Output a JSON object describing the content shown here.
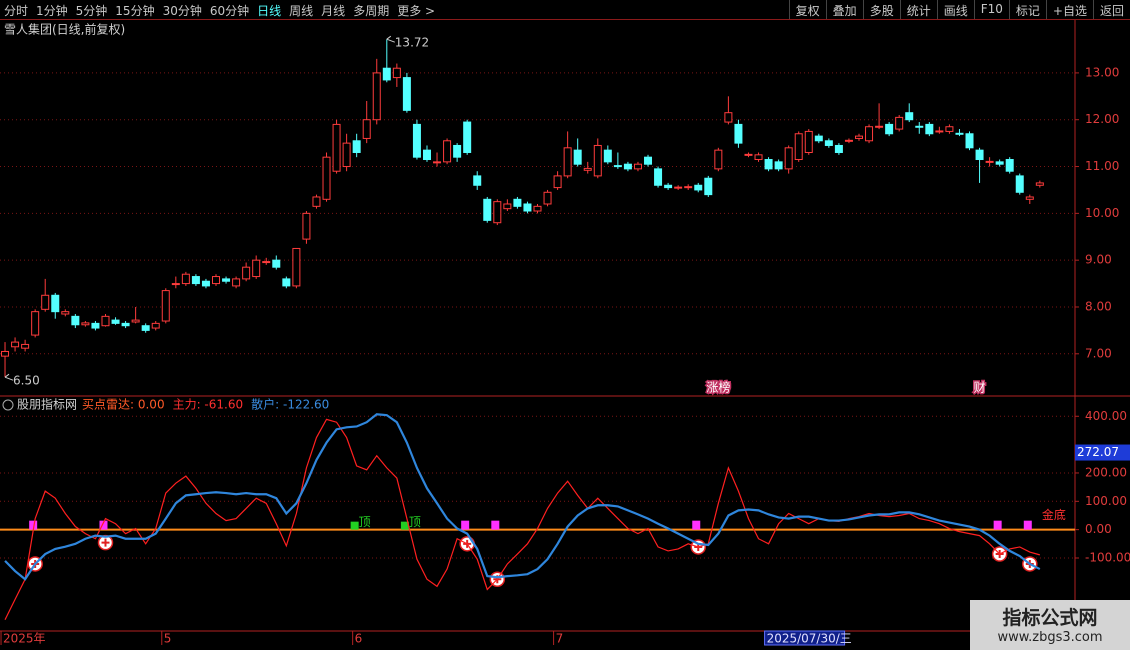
{
  "toolbar": {
    "left": [
      "分时",
      "1分钟",
      "5分钟",
      "15分钟",
      "30分钟",
      "60分钟",
      "日线",
      "周线",
      "月线",
      "多周期",
      "更多 >"
    ],
    "active": "日线",
    "right": [
      "复权",
      "叠加",
      "多股",
      "统计",
      "画线",
      "F10",
      "标记",
      "+自选",
      "返回"
    ]
  },
  "watermark": {
    "title": "指标公式网",
    "url": "www.zbgs3.com"
  },
  "chart_data": [
    {
      "type": "candlestick",
      "title": "雪人集团(日线,前复权)",
      "up_color": "#ff3c3c",
      "down_color": "#54ffff",
      "ylim": [
        6.12,
        14.13
      ],
      "yticks": [
        {
          "value": 7,
          "label": "7.00"
        },
        {
          "value": 8,
          "label": "8.00"
        },
        {
          "value": 9,
          "label": "9.00"
        },
        {
          "value": 10,
          "label": "10.00"
        },
        {
          "value": 11,
          "label": "11.00"
        },
        {
          "value": 12,
          "label": "12.00"
        },
        {
          "value": 13,
          "label": "13.00"
        }
      ],
      "grid": true,
      "categories": [
        "2025年",
        null,
        null,
        null,
        null,
        null,
        null,
        null,
        null,
        null,
        null,
        null,
        null,
        null,
        null,
        null,
        "5",
        null,
        null,
        null,
        null,
        null,
        null,
        null,
        null,
        null,
        null,
        null,
        null,
        null,
        null,
        null,
        null,
        null,
        null,
        "6",
        null,
        null,
        null,
        null,
        null,
        null,
        null,
        null,
        null,
        null,
        null,
        null,
        null,
        null,
        null,
        null,
        null,
        null,
        null,
        "7",
        null,
        null,
        null,
        null,
        null,
        null,
        null,
        null,
        null,
        null,
        null,
        null,
        null,
        null,
        null,
        null,
        null,
        null,
        null,
        null,
        null,
        null,
        null,
        null,
        null,
        null,
        null,
        null,
        null,
        null,
        null,
        null,
        null,
        null,
        null,
        null,
        null,
        null,
        null,
        null,
        null,
        null,
        null,
        null,
        null,
        null,
        null,
        null
      ],
      "open": [
        6.95,
        7.15,
        7.12,
        7.4,
        7.95,
        8.25,
        7.85,
        7.8,
        7.62,
        7.65,
        7.6,
        7.72,
        7.65,
        7.68,
        7.6,
        7.55,
        7.7,
        8.48,
        8.5,
        8.65,
        8.55,
        8.5,
        8.6,
        8.45,
        8.6,
        8.65,
        8.95,
        9.0,
        8.6,
        8.45,
        9.45,
        10.15,
        10.3,
        10.9,
        11.0,
        11.55,
        11.6,
        12.0,
        13.1,
        12.9,
        12.9,
        11.9,
        11.35,
        11.08,
        11.1,
        11.45,
        11.95,
        10.8,
        10.3,
        9.8,
        10.1,
        10.3,
        10.2,
        10.05,
        10.2,
        10.55,
        10.8,
        11.35,
        10.92,
        10.8,
        11.35,
        11.02,
        11.05,
        10.95,
        11.2,
        10.95,
        10.6,
        10.54,
        10.55,
        10.6,
        10.75,
        10.95,
        11.95,
        11.9,
        11.24,
        11.15,
        11.15,
        11.1,
        10.95,
        11.15,
        11.3,
        11.65,
        11.55,
        11.45,
        11.54,
        11.6,
        11.55,
        11.84,
        11.9,
        11.8,
        12.15,
        11.86,
        11.9,
        11.74,
        11.75,
        11.71,
        11.7,
        11.35,
        11.09,
        11.1,
        11.15,
        10.8,
        10.3,
        10.6
      ],
      "high": [
        7.25,
        7.35,
        7.3,
        7.95,
        8.6,
        8.3,
        7.95,
        7.85,
        7.7,
        7.7,
        7.85,
        7.78,
        7.7,
        8.0,
        7.65,
        7.7,
        8.4,
        8.65,
        8.75,
        8.7,
        8.6,
        8.7,
        8.65,
        8.65,
        8.95,
        9.1,
        9.05,
        9.1,
        8.65,
        9.25,
        10.05,
        10.4,
        11.3,
        12.0,
        11.7,
        11.7,
        12.4,
        13.3,
        13.72,
        13.2,
        13.0,
        12.0,
        11.45,
        11.3,
        11.6,
        11.5,
        12.0,
        10.9,
        10.35,
        10.3,
        10.3,
        10.35,
        10.25,
        10.2,
        10.5,
        10.9,
        11.75,
        11.6,
        11.1,
        11.6,
        11.45,
        11.3,
        11.1,
        11.1,
        11.25,
        11.0,
        10.65,
        10.6,
        10.62,
        10.65,
        10.8,
        11.4,
        12.5,
        12.0,
        11.3,
        11.3,
        11.2,
        11.15,
        11.45,
        11.75,
        11.8,
        11.7,
        11.6,
        11.5,
        11.6,
        11.7,
        11.9,
        12.35,
        11.95,
        12.1,
        12.35,
        11.95,
        11.95,
        11.85,
        11.9,
        11.8,
        11.75,
        11.4,
        11.2,
        11.15,
        11.2,
        10.85,
        10.4,
        10.7
      ],
      "low": [
        6.5,
        7.05,
        7.05,
        7.35,
        7.9,
        7.75,
        7.8,
        7.55,
        7.58,
        7.5,
        7.58,
        7.62,
        7.55,
        7.65,
        7.45,
        7.5,
        7.65,
        8.4,
        8.45,
        8.45,
        8.4,
        8.45,
        8.5,
        8.4,
        8.55,
        8.6,
        8.9,
        8.8,
        8.4,
        8.4,
        9.35,
        10.1,
        10.25,
        10.85,
        10.9,
        11.2,
        11.5,
        11.9,
        12.8,
        12.7,
        12.15,
        11.15,
        11.1,
        11.0,
        11.05,
        11.1,
        11.25,
        10.5,
        9.8,
        9.75,
        10.05,
        10.1,
        10.0,
        10.0,
        10.15,
        10.5,
        10.75,
        11.0,
        10.85,
        10.75,
        11.05,
        10.95,
        10.9,
        10.9,
        11.0,
        10.55,
        10.5,
        10.5,
        10.5,
        10.45,
        10.35,
        10.9,
        11.9,
        11.4,
        11.2,
        11.1,
        10.9,
        10.9,
        10.85,
        11.1,
        11.25,
        11.5,
        11.4,
        11.25,
        11.5,
        11.55,
        11.5,
        11.8,
        11.65,
        11.75,
        11.95,
        11.7,
        11.65,
        11.7,
        11.7,
        11.65,
        11.35,
        10.65,
        11.0,
        11.0,
        10.85,
        10.4,
        10.2,
        10.55
      ],
      "close": [
        7.05,
        7.25,
        7.2,
        7.9,
        8.25,
        7.9,
        7.9,
        7.62,
        7.66,
        7.55,
        7.8,
        7.65,
        7.6,
        7.72,
        7.5,
        7.65,
        8.35,
        8.5,
        8.7,
        8.5,
        8.45,
        8.65,
        8.55,
        8.6,
        8.85,
        9.0,
        8.97,
        8.85,
        8.45,
        9.25,
        10.0,
        10.35,
        11.2,
        11.9,
        11.5,
        11.3,
        12.0,
        13.0,
        12.85,
        13.1,
        12.2,
        11.2,
        11.15,
        11.1,
        11.55,
        11.2,
        11.3,
        10.6,
        9.85,
        10.25,
        10.2,
        10.15,
        10.05,
        10.15,
        10.45,
        10.8,
        11.4,
        11.05,
        10.96,
        11.45,
        11.1,
        11.0,
        10.95,
        11.05,
        11.05,
        10.6,
        10.55,
        10.56,
        10.57,
        10.5,
        10.4,
        11.35,
        12.15,
        11.5,
        11.26,
        11.25,
        10.95,
        10.95,
        11.4,
        11.7,
        11.75,
        11.55,
        11.45,
        11.3,
        11.56,
        11.65,
        11.85,
        11.86,
        11.7,
        12.05,
        12.0,
        11.84,
        11.7,
        11.76,
        11.85,
        11.69,
        11.4,
        11.15,
        11.11,
        11.05,
        10.9,
        10.45,
        10.35,
        10.65
      ],
      "annotations": [
        {
          "index": 38,
          "value": 13.72,
          "label": "13.72"
        },
        {
          "index": 0,
          "value": 6.5,
          "label": "6.50"
        }
      ],
      "events": [
        {
          "index": 71,
          "label": "涨榜"
        },
        {
          "index": 97,
          "label": "财"
        }
      ],
      "crosshair": {
        "index": 76,
        "label": "2025/07/30/三"
      }
    },
    {
      "type": "line",
      "title": "股朋指标网",
      "legend": [
        {
          "text": "买点雷达: 0.00",
          "color": "#ff5a28"
        },
        {
          "text": "主力: -61.60",
          "color": "#ff3030"
        },
        {
          "text": "散户: -122.60",
          "color": "#3a8ce0"
        }
      ],
      "ylim": [
        -354,
        468
      ],
      "yticks": [
        {
          "value": -100,
          "label": "-100.00"
        },
        {
          "value": 0,
          "label": "0.00"
        },
        {
          "value": 100,
          "label": "100.00"
        },
        {
          "value": 200,
          "label": "200.00"
        },
        {
          "value": 400,
          "label": "400.00"
        }
      ],
      "grid": true,
      "baseline_color": "#ff8c1a",
      "series": [
        {
          "color": "#ff2020",
          "values": [
            -318,
            -246,
            -175,
            39,
            136,
            111,
            57,
            11,
            -14,
            -32,
            39,
            21,
            -14,
            4,
            -50,
            4,
            129,
            164,
            189,
            146,
            93,
            57,
            32,
            39,
            75,
            111,
            93,
            21,
            -57,
            57,
            218,
            325,
            389,
            379,
            325,
            225,
            211,
            261,
            218,
            182,
            39,
            -104,
            -175,
            -200,
            -139,
            -32,
            -50,
            -104,
            -211,
            -175,
            -121,
            -86,
            -50,
            4,
            75,
            129,
            171,
            121,
            75,
            111,
            75,
            39,
            4,
            -14,
            4,
            -61,
            -75,
            -68,
            -50,
            -61,
            -50,
            93,
            218,
            136,
            39,
            -32,
            -50,
            21,
            57,
            39,
            21,
            39,
            32,
            29,
            39,
            46,
            57,
            50,
            46,
            50,
            57,
            39,
            32,
            21,
            4,
            -7,
            -14,
            -21,
            -50,
            -86,
            -68,
            -61,
            -79,
            -89
          ]
        },
        {
          "color": "#2f86dc",
          "values": [
            -110,
            -146,
            -175,
            -121,
            -86,
            -68,
            -60,
            -50,
            -32,
            -21,
            -25,
            -21,
            -32,
            -32,
            -32,
            -14,
            39,
            93,
            121,
            125,
            129,
            132,
            129,
            125,
            129,
            125,
            125,
            111,
            57,
            93,
            164,
            246,
            307,
            354,
            361,
            364,
            379,
            407,
            404,
            379,
            307,
            218,
            146,
            93,
            39,
            4,
            -14,
            -68,
            -164,
            -168,
            -164,
            -161,
            -157,
            -139,
            -104,
            -50,
            11,
            50,
            75,
            86,
            86,
            82,
            68,
            54,
            39,
            21,
            4,
            -14,
            -32,
            -50,
            -54,
            -14,
            50,
            68,
            71,
            68,
            54,
            43,
            39,
            46,
            46,
            39,
            32,
            32,
            36,
            43,
            50,
            54,
            54,
            61,
            61,
            54,
            43,
            32,
            25,
            18,
            11,
            0,
            -21,
            -50,
            -75,
            -93,
            -121,
            -139
          ]
        }
      ],
      "buy_points": [
        3,
        10,
        46,
        49,
        69,
        99,
        102
      ],
      "top_points": [
        35,
        40
      ],
      "top_label": "顶",
      "bottom_label": {
        "index": 103,
        "label": "金底"
      },
      "cursor_value": {
        "value": 272.07,
        "label": "272.07"
      }
    }
  ]
}
